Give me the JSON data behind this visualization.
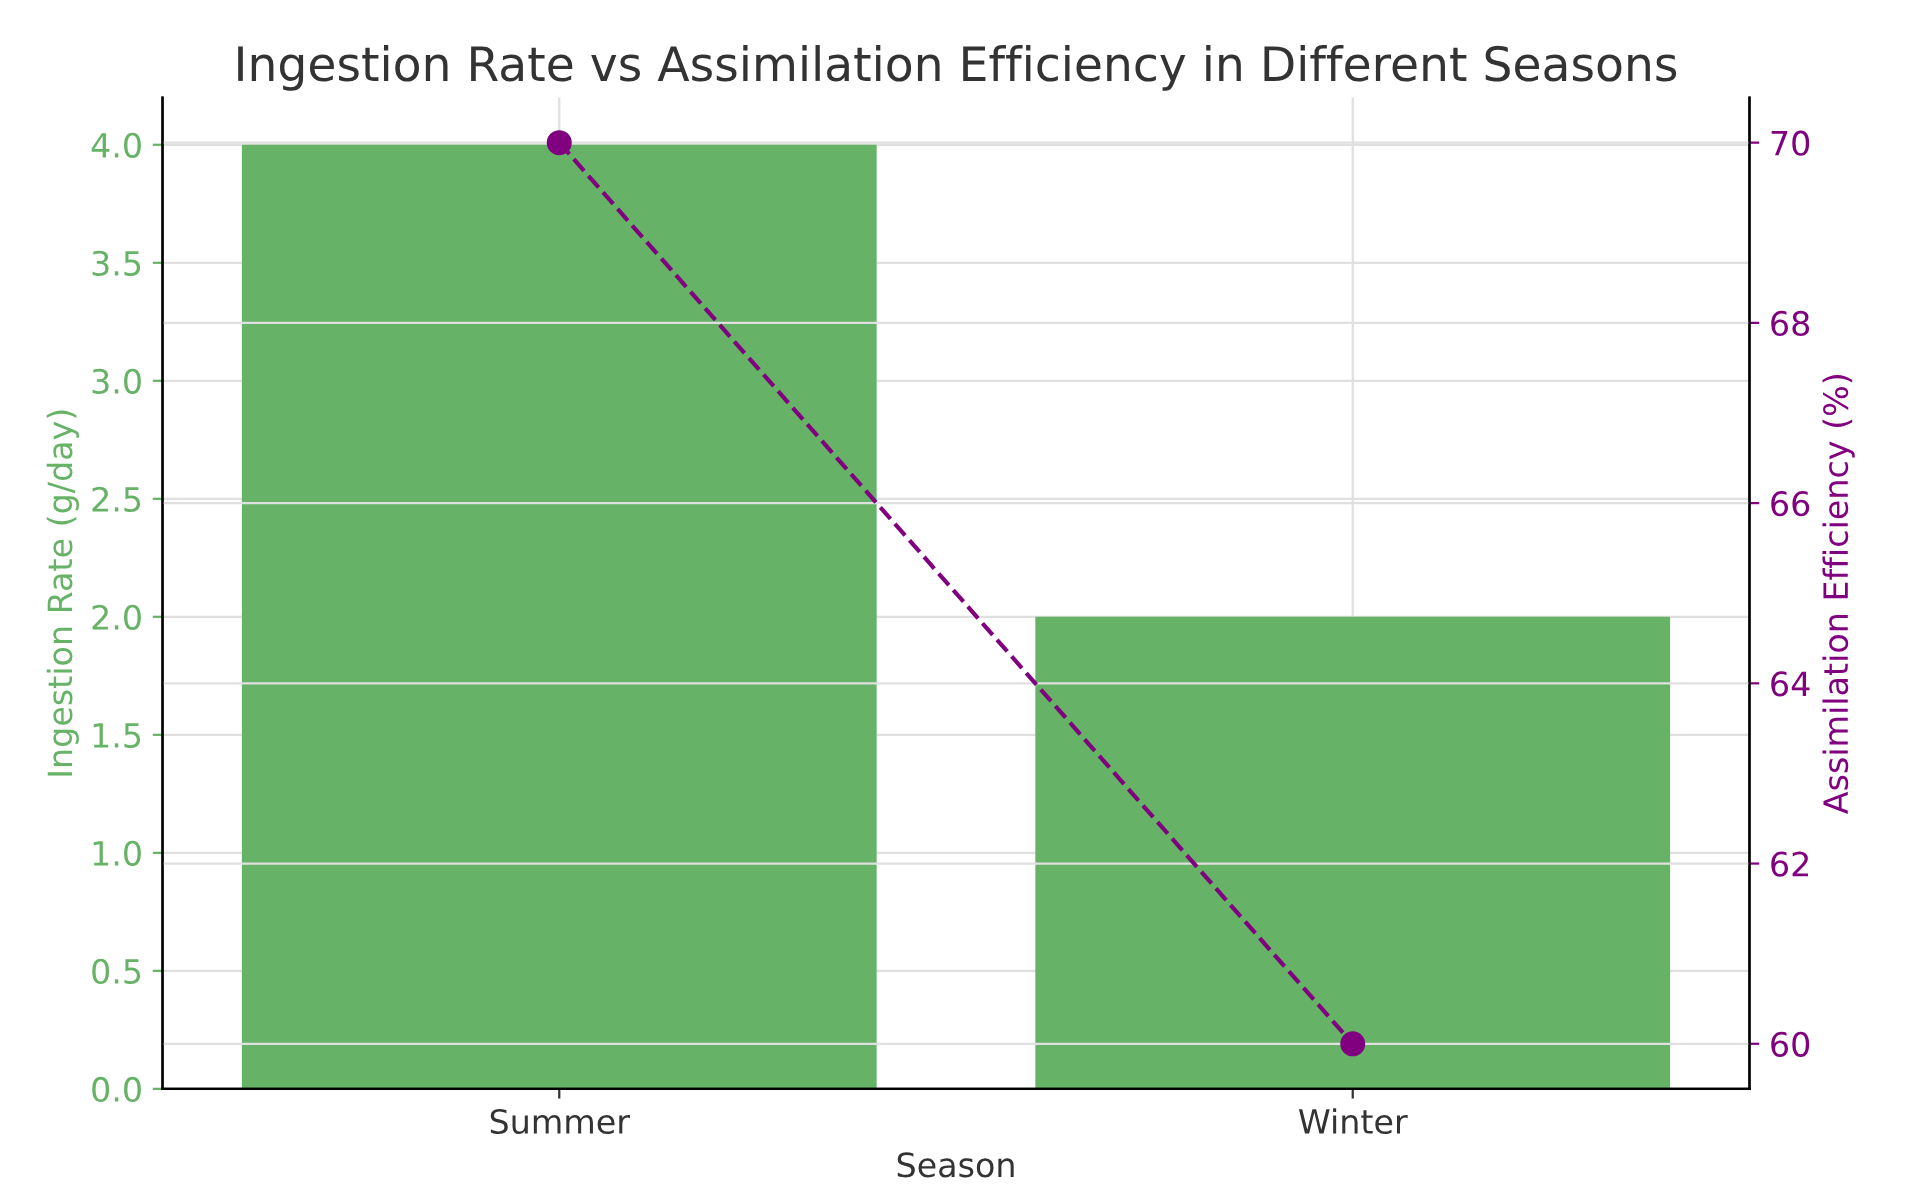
{
  "chart_data": {
    "type": "bar",
    "title": "Ingestion Rate vs Assimilation Efficiency in Different Seasons",
    "xlabel": "Season",
    "ylabel": "Ingestion Rate (g/day)",
    "y2label": "Assimilation Efficiency (%)",
    "categories": [
      "Summer",
      "Winter"
    ],
    "series": [
      {
        "color": "#66b266",
        "values": [
          4.0,
          2.0
        ]
      },
      {
        "type": "line",
        "axis": "y2",
        "color": "#800080",
        "values": [
          70,
          60
        ],
        "marker": "circle",
        "line_style": "dashed"
      }
    ],
    "ylim": [
      0,
      4.2
    ],
    "yticks": [
      {
        "value": 0,
        "label": "0.0"
      },
      {
        "value": 0.5,
        "label": "0.5"
      },
      {
        "value": 1,
        "label": "1.0"
      },
      {
        "value": 1.5,
        "label": "1.5"
      },
      {
        "value": 2,
        "label": "2.0"
      },
      {
        "value": 2.5,
        "label": "2.5"
      },
      {
        "value": 3,
        "label": "3.0"
      },
      {
        "value": 3.5,
        "label": "3.5"
      },
      {
        "value": 4,
        "label": "4.0"
      }
    ],
    "y2lim": [
      59.5,
      70.5
    ],
    "y2ticks": [
      60,
      62,
      64,
      66,
      68,
      70
    ],
    "grid": true
  }
}
